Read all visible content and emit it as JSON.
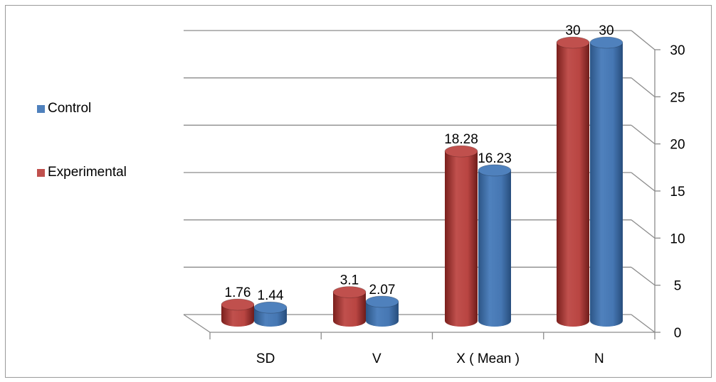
{
  "chart_data": {
    "type": "bar",
    "style": "3d-cylinder",
    "categories": [
      "SD",
      "V",
      "X ( Mean )",
      "N"
    ],
    "series": [
      {
        "name": "Experimental",
        "values": [
          1.76,
          3.1,
          18.28,
          30
        ],
        "color": "#c0504d"
      },
      {
        "name": "Control",
        "values": [
          1.44,
          2.07,
          16.23,
          30
        ],
        "color": "#4f81bd"
      }
    ],
    "data_labels": [
      [
        "1.76",
        "3.1",
        "18.28",
        "30"
      ],
      [
        "1.44",
        "2.07",
        "16.23",
        "30"
      ]
    ],
    "yticks": [
      "0",
      "5",
      "10",
      "15",
      "20",
      "25",
      "30"
    ],
    "ylim": [
      0,
      30
    ],
    "y_axis_side": "right",
    "grid": true,
    "legend_position": "left",
    "legend": [
      {
        "label": "Control",
        "color": "#4f81bd"
      },
      {
        "label": "Experimental",
        "color": "#c0504d"
      }
    ],
    "title": "",
    "xlabel": "",
    "ylabel": ""
  }
}
